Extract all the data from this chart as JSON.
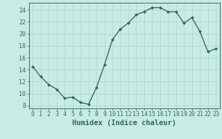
{
  "x": [
    0,
    1,
    2,
    3,
    4,
    5,
    6,
    7,
    8,
    9,
    10,
    11,
    12,
    13,
    14,
    15,
    16,
    17,
    18,
    19,
    20,
    21,
    22,
    23
  ],
  "y": [
    14.5,
    12.8,
    11.5,
    10.7,
    9.2,
    9.4,
    8.5,
    8.2,
    11.0,
    14.8,
    19.0,
    20.8,
    21.8,
    23.2,
    23.7,
    24.4,
    24.4,
    23.7,
    23.7,
    21.8,
    22.7,
    20.4,
    17.0,
    17.5
  ],
  "line_color": "#2e6b5e",
  "marker": "D",
  "marker_size": 2.0,
  "bg_color": "#c8ebe5",
  "grid_color": "#b0d8d0",
  "xlabel": "Humidex (Indice chaleur)",
  "xlim": [
    -0.5,
    23.5
  ],
  "ylim": [
    7.5,
    25.2
  ],
  "yticks": [
    8,
    10,
    12,
    14,
    16,
    18,
    20,
    22,
    24
  ],
  "xticks": [
    0,
    1,
    2,
    3,
    4,
    5,
    6,
    7,
    8,
    9,
    10,
    11,
    12,
    13,
    14,
    15,
    16,
    17,
    18,
    19,
    20,
    21,
    22,
    23
  ],
  "tick_color": "#2e6b5e",
  "axis_color": "#2e6b5e",
  "xlabel_fontsize": 7.5,
  "tick_fontsize": 6.0,
  "linewidth": 1.0
}
